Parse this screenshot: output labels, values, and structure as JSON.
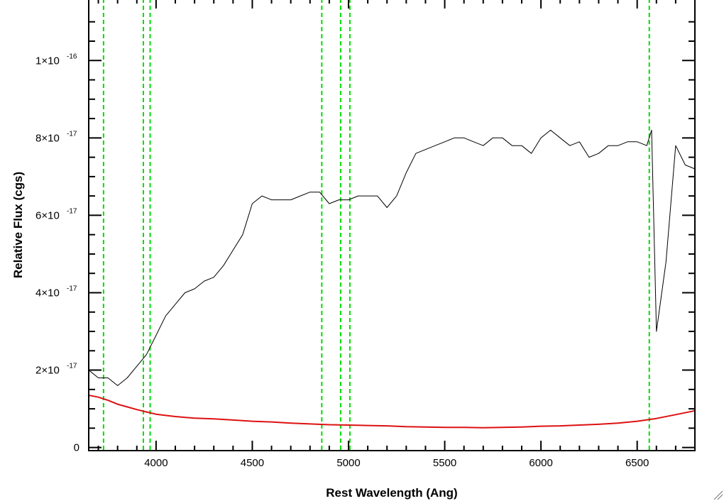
{
  "chart_data": {
    "type": "line",
    "xlabel": "Rest Wavelength (Ang)",
    "ylabel": "Relative Flux (cgs)",
    "xlim": [
      3650,
      6800
    ],
    "ylim": [
      -8e-19,
      1.16e-16
    ],
    "x_ticks": [
      {
        "value": 4000,
        "label": "4000"
      },
      {
        "value": 4500,
        "label": "4500"
      },
      {
        "value": 5000,
        "label": "5000"
      },
      {
        "value": 5500,
        "label": "5500"
      },
      {
        "value": 6000,
        "label": "6000"
      },
      {
        "value": 6500,
        "label": "6500"
      }
    ],
    "y_ticks": [
      {
        "value": 0,
        "label": "0",
        "exp": ""
      },
      {
        "value": 2e-17,
        "label": "2×10",
        "exp": "-17"
      },
      {
        "value": 4e-17,
        "label": "4×10",
        "exp": "-17"
      },
      {
        "value": 6e-17,
        "label": "6×10",
        "exp": "-17"
      },
      {
        "value": 8e-17,
        "label": "8×10",
        "exp": "-17"
      },
      {
        "value": 1e-16,
        "label": "1×10",
        "exp": "-16"
      }
    ],
    "reference_lines": {
      "color": "#00dd00",
      "style": "dashed",
      "x": [
        3727,
        3934,
        3969,
        4861,
        4959,
        5007,
        6563
      ]
    },
    "series": [
      {
        "color": "#000000",
        "x": [
          3650,
          3700,
          3750,
          3800,
          3850,
          3900,
          3950,
          4000,
          4050,
          4100,
          4150,
          4200,
          4250,
          4300,
          4350,
          4400,
          4450,
          4500,
          4550,
          4600,
          4650,
          4700,
          4750,
          4800,
          4850,
          4900,
          4950,
          5000,
          5050,
          5100,
          5150,
          5200,
          5250,
          5300,
          5350,
          5400,
          5450,
          5500,
          5550,
          5600,
          5650,
          5700,
          5750,
          5800,
          5850,
          5900,
          5950,
          6000,
          6050,
          6100,
          6150,
          6200,
          6250,
          6300,
          6350,
          6400,
          6450,
          6500,
          6550,
          6575,
          6600,
          6650,
          6700,
          6750,
          6800
        ],
        "y": [
          2e-17,
          1.8e-17,
          1.8e-17,
          1.6e-17,
          1.8e-17,
          2.1e-17,
          2.4e-17,
          2.9e-17,
          3.4e-17,
          3.7e-17,
          4e-17,
          4.1e-17,
          4.3e-17,
          4.4e-17,
          4.7e-17,
          5.1e-17,
          5.5e-17,
          6.3e-17,
          6.5e-17,
          6.4e-17,
          6.4e-17,
          6.4e-17,
          6.5e-17,
          6.6e-17,
          6.6e-17,
          6.3e-17,
          6.4e-17,
          6.4e-17,
          6.5e-17,
          6.5e-17,
          6.5e-17,
          6.2e-17,
          6.5e-17,
          7.1e-17,
          7.6e-17,
          7.7e-17,
          7.8e-17,
          7.9e-17,
          8e-17,
          8e-17,
          7.9e-17,
          7.8e-17,
          8e-17,
          8e-17,
          7.8e-17,
          7.8e-17,
          7.6e-17,
          8e-17,
          8.2e-17,
          8e-17,
          7.8e-17,
          7.9e-17,
          7.5e-17,
          7.6e-17,
          7.8e-17,
          7.8e-17,
          7.9e-17,
          7.9e-17,
          7.8e-17,
          8.2e-17,
          3e-17,
          4.8e-17,
          7.8e-17,
          7.3e-17,
          7.2e-17
        ]
      },
      {
        "color": "#dd1111",
        "x": [
          3650,
          3700,
          3750,
          3800,
          3850,
          3900,
          3950,
          4000,
          4100,
          4200,
          4300,
          4400,
          4500,
          4600,
          4700,
          4800,
          4900,
          5000,
          5100,
          5200,
          5300,
          5400,
          5500,
          5600,
          5700,
          5800,
          5900,
          6000,
          6100,
          6200,
          6300,
          6400,
          6500,
          6600,
          6700,
          6800
        ],
        "y": [
          1.35e-17,
          1.3e-17,
          1.22e-17,
          1.12e-17,
          1.05e-17,
          9.8e-18,
          9.2e-18,
          8.6e-18,
          8e-18,
          7.6e-18,
          7.4e-18,
          7.1e-18,
          6.8e-18,
          6.6e-18,
          6.3e-18,
          6.1e-18,
          5.9e-18,
          5.8e-18,
          5.7e-18,
          5.6e-18,
          5.4e-18,
          5.3e-18,
          5.2e-18,
          5.2e-18,
          5.1e-18,
          5.2e-18,
          5.3e-18,
          5.5e-18,
          5.6e-18,
          5.8e-18,
          6e-18,
          6.3e-18,
          6.8e-18,
          7.5e-18,
          8.5e-18,
          9.5e-18
        ]
      }
    ]
  }
}
